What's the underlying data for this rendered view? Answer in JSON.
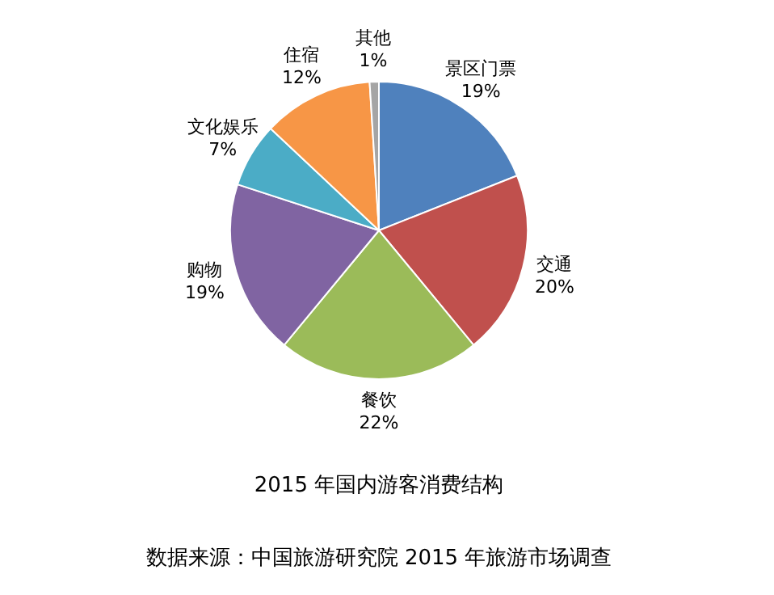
{
  "chart_data": {
    "type": "pie",
    "title": "2015 年国内游客消费结构",
    "categories": [
      "景区门票",
      "交通",
      "餐饮",
      "购物",
      "文化娱乐",
      "住宿",
      "其他"
    ],
    "values": [
      19,
      20,
      22,
      19,
      7,
      12,
      1
    ],
    "value_labels": [
      "19%",
      "20%",
      "22%",
      "19%",
      "7%",
      "12%",
      "1%"
    ],
    "colors": [
      "#4f81bd",
      "#c0504d",
      "#9bbb59",
      "#8064a2",
      "#4bacc6",
      "#f79646",
      "#a5a5a5"
    ],
    "annotations": [
      "数据来源：中国旅游研究院 2015 年旅游市场调查"
    ]
  }
}
